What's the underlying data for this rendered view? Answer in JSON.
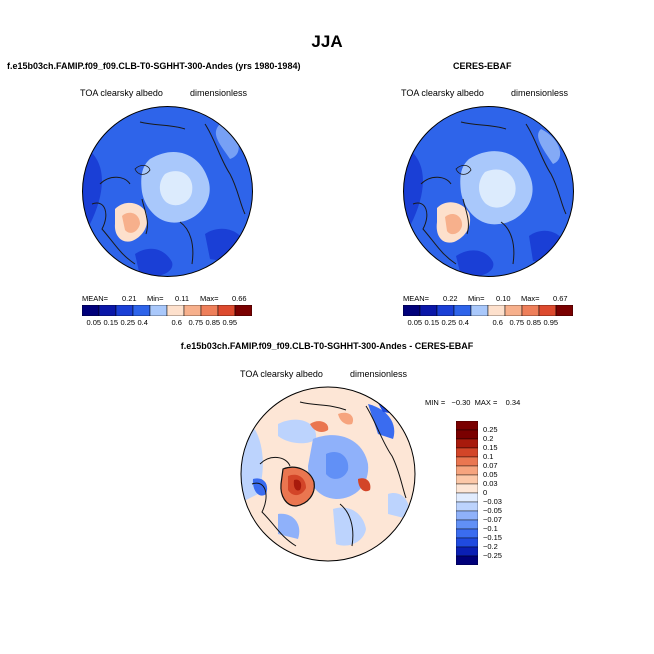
{
  "season": "JJA",
  "panels": [
    {
      "title": "f.e15b03ch.FAMIP.f09_f09.CLB-T0-SGHHT-300-Andes (yrs 1980-1984)",
      "variable": "TOA clearsky albedo",
      "units": "dimensionless",
      "stats": {
        "mean_label": "MEAN=",
        "mean": "0.21",
        "min_label": "Min=",
        "min": "0.11",
        "max_label": "Max=",
        "max": "0.66"
      }
    },
    {
      "title": "CERES-EBAF",
      "variable": "TOA clearsky albedo",
      "units": "dimensionless",
      "stats": {
        "mean_label": "MEAN=",
        "mean": "0.22",
        "min_label": "Min=",
        "min": "0.10",
        "max_label": "Max=",
        "max": "0.67"
      }
    }
  ],
  "diff_panel": {
    "title": "f.e15b03ch.FAMIP.f09_f09.CLB-T0-SGHHT-300-Andes - CERES-EBAF",
    "variable": "TOA clearsky albedo",
    "units": "dimensionless",
    "minmax_text": "MIN =   −0.30  MAX =    0.34"
  },
  "colors": {
    "abs_scale": [
      "#00007a",
      "#0a17a8",
      "#1a3fd6",
      "#2e64ea",
      "#5a8ef4",
      "#a9c8fb",
      "#dcebfd",
      "#fde0cc",
      "#f7b08c",
      "#ee7f5a",
      "#dd4a2e",
      "#b81d10",
      "#7a0000"
    ],
    "diff_scale": [
      "#00007a",
      "#0a1fb4",
      "#1f4ae0",
      "#3a6cf0",
      "#6190f6",
      "#8fb1fa",
      "#bcd3fd",
      "#e1ecfe",
      "#fde6d6",
      "#fcc8a8",
      "#f6a47e",
      "#ea7650",
      "#d34528",
      "#a81a0c",
      "#7a0000"
    ]
  },
  "chart_data": [
    {
      "type": "heatmap",
      "projection": "north polar stereographic",
      "title": "f.e15b03ch.FAMIP.f09_f09.CLB-T0-SGHHT-300-Andes (yrs 1980-1984)",
      "variable": "TOA clearsky albedo",
      "units": "dimensionless",
      "mean": 0.21,
      "min": 0.11,
      "max": 0.66,
      "colorbar_levels": [
        "0.05",
        "0.15",
        "0.25",
        "0.4",
        "0.6",
        "0.75",
        "0.85",
        "0.95"
      ]
    },
    {
      "type": "heatmap",
      "projection": "north polar stereographic",
      "title": "CERES-EBAF",
      "variable": "TOA clearsky albedo",
      "units": "dimensionless",
      "mean": 0.22,
      "min": 0.1,
      "max": 0.67,
      "colorbar_levels": [
        "0.05",
        "0.15",
        "0.25",
        "0.4",
        "0.6",
        "0.75",
        "0.85",
        "0.95"
      ]
    },
    {
      "type": "heatmap",
      "projection": "north polar stereographic",
      "title": "f.e15b03ch.FAMIP.f09_f09.CLB-T0-SGHHT-300-Andes - CERES-EBAF",
      "variable": "TOA clearsky albedo",
      "units": "dimensionless",
      "min": -0.3,
      "max": 0.34,
      "colorbar_levels": [
        "0.25",
        "0.2",
        "0.15",
        "0.1",
        "0.07",
        "0.05",
        "0.03",
        "0",
        "−0.03",
        "−0.05",
        "−0.07",
        "−0.1",
        "−0.15",
        "−0.2",
        "−0.25"
      ]
    }
  ]
}
